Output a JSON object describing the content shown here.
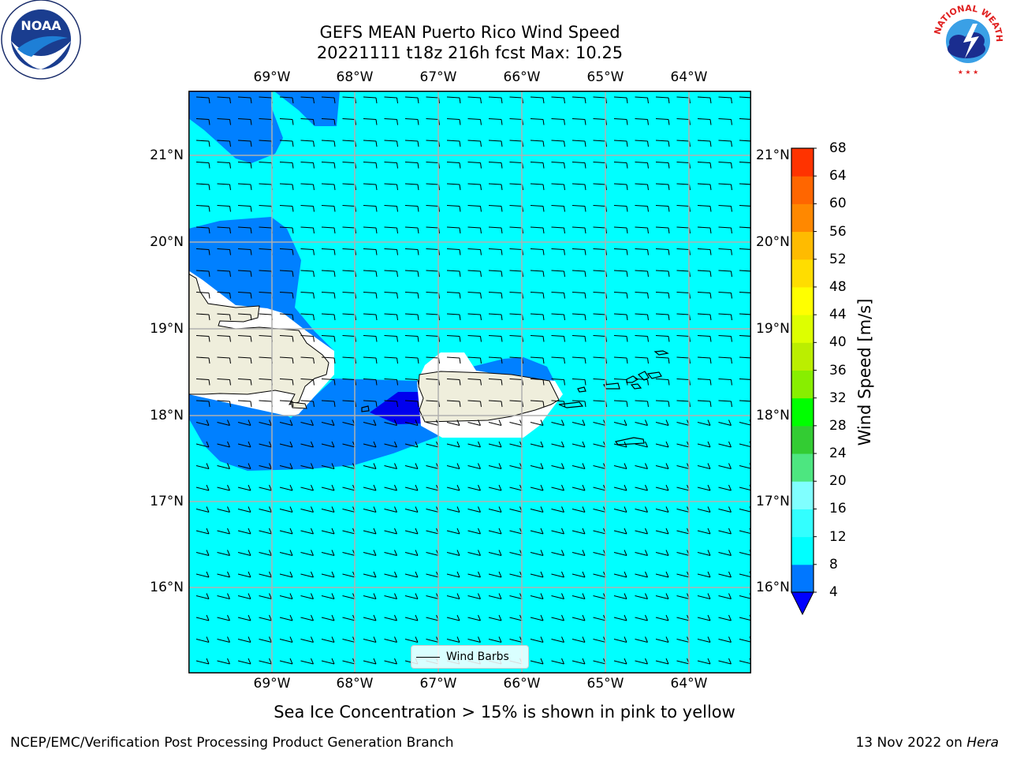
{
  "header": {
    "title_line1": "GEFS MEAN Puerto Rico Wind Speed",
    "title_line2": "20221111 t18z 216h fcst   Max: 10.25"
  },
  "logos": {
    "left": {
      "name": "noaa-logo",
      "text": "NOAA",
      "ring_text": "NATIONAL OCEANIC AND ATMOSPHERIC ADMINISTRATION · U.S. DEPARTMENT OF COMMERCE"
    },
    "right": {
      "name": "nws-logo",
      "ring_text": "NATIONAL WEATHER SERVICE"
    }
  },
  "axes": {
    "lon_ticks": [
      "69°W",
      "68°W",
      "67°W",
      "66°W",
      "65°W",
      "64°W"
    ],
    "lat_ticks": [
      "21°N",
      "20°N",
      "19°N",
      "18°N",
      "17°N",
      "16°N"
    ],
    "lon_range": [
      -70.0,
      -63.25
    ],
    "lat_range": [
      15.0,
      21.75
    ]
  },
  "legend": {
    "label": "Wind Barbs"
  },
  "colorbar": {
    "title": "Wind Speed [m/s]",
    "levels": [
      4,
      8,
      12,
      16,
      20,
      24,
      28,
      32,
      36,
      40,
      44,
      48,
      52,
      56,
      60,
      64,
      68
    ],
    "colors": [
      "#0077ff",
      "#00ffff",
      "#33ffff",
      "#80ffff",
      "#4de680",
      "#33cc33",
      "#00ff00",
      "#88ee00",
      "#bbee00",
      "#ddff00",
      "#ffff00",
      "#ffdd00",
      "#ffbb00",
      "#ff8800",
      "#ff6600",
      "#ff3300"
    ],
    "under_color": "#0000ff"
  },
  "map_colors": {
    "ocean_light": "#00ffff",
    "ocean_mid": "#0080ff",
    "ocean_dark": "#0000ee",
    "land": "#efeedc",
    "no_data": "#ffffff",
    "grid": "#b0b0b0"
  },
  "caption": "Sea Ice Concentration > 15% is shown in pink to yellow",
  "footer": {
    "left": "NCEP/EMC/Verification Post Processing Product Generation Branch",
    "right_prefix": "13 Nov 2022 on ",
    "right_machine": "Hera"
  }
}
